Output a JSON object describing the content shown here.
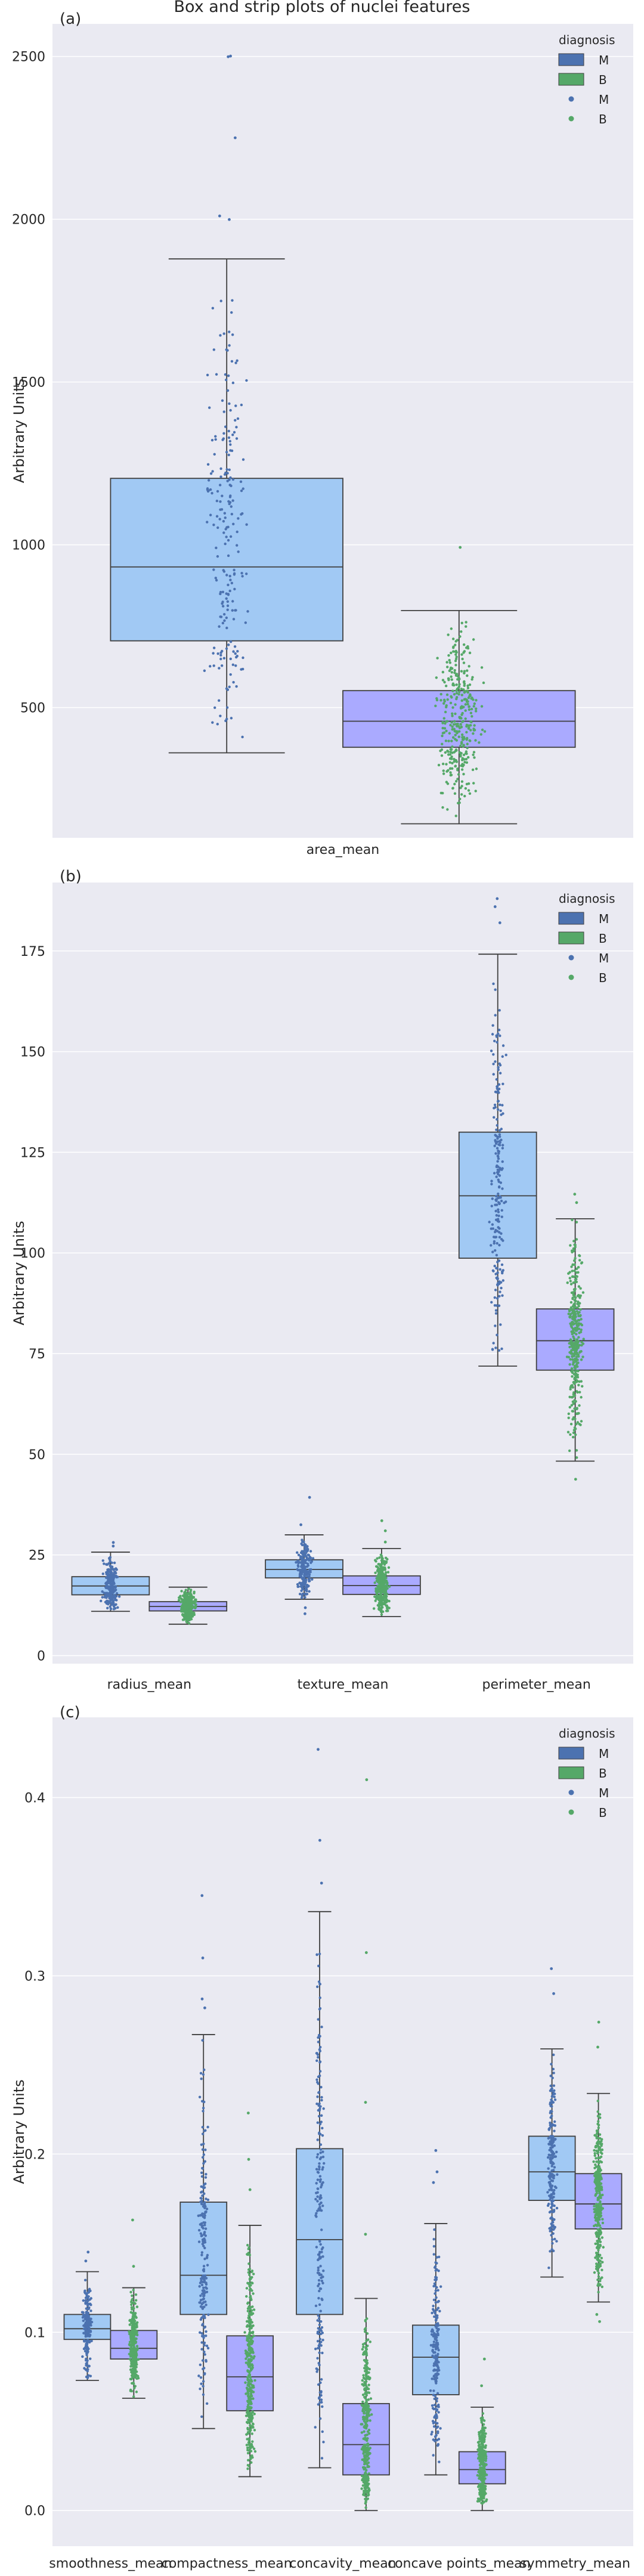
{
  "figure_title": "Box and strip plots of nuclei features",
  "colors": {
    "panel_bg": "#eaeaf2",
    "grid": "#ffffff",
    "box_M": "#a1c9f4",
    "box_B": "#aaaaff",
    "legend_M": "#4c72b0",
    "legend_B": "#55a868",
    "point_M": "#4c72b0",
    "point_B": "#55a868",
    "box_edge": "#3f3f3f"
  },
  "legend": {
    "title": "diagnosis",
    "entries": [
      "M",
      "B",
      "M",
      "B"
    ]
  },
  "chart_data": [
    {
      "type": "box",
      "panel_label": "(a)",
      "ylabel": "Arbitrary Units",
      "categories": [
        "area_mean"
      ],
      "ylim": [
        100,
        2600
      ],
      "yticks": [
        500,
        1000,
        1500,
        2000,
        2500
      ],
      "grid": true,
      "legend_placement": "top-right",
      "series": [
        {
          "name": "M",
          "stats": [
            {
              "whislo": 361,
              "q1": 705,
              "med": 932,
              "q3": 1204,
              "whishi": 1878
            }
          ],
          "outliers": [
            [
              1999,
              2010,
              2250,
              2499,
              2501
            ]
          ]
        },
        {
          "name": "B",
          "stats": [
            {
              "whislo": 143,
              "q1": 378,
              "med": 458,
              "q3": 552,
              "whishi": 798
            }
          ],
          "outliers": [
            [
              992
            ]
          ]
        }
      ]
    },
    {
      "type": "box",
      "panel_label": "(b)",
      "ylabel": "Arbitrary Units",
      "categories": [
        "radius_mean",
        "texture_mean",
        "perimeter_mean"
      ],
      "ylim": [
        -2,
        192
      ],
      "yticks": [
        0,
        25,
        50,
        75,
        100,
        125,
        150,
        175
      ],
      "grid": true,
      "legend_placement": "top-right",
      "series": [
        {
          "name": "M",
          "stats": [
            {
              "whislo": 11,
              "q1": 15.1,
              "med": 17.3,
              "q3": 19.6,
              "whishi": 25.7
            },
            {
              "whislo": 14,
              "q1": 19.3,
              "med": 21.4,
              "q3": 23.8,
              "whishi": 30.0
            },
            {
              "whislo": 71.9,
              "q1": 98.7,
              "med": 114.2,
              "q3": 130.0,
              "whishi": 174.2
            }
          ],
          "outliers": [
            [
              27.2,
              28.1
            ],
            [
              10.4,
              11.9,
              32.5,
              39.3
            ],
            [
              182,
              186,
              188
            ]
          ]
        },
        {
          "name": "B",
          "stats": [
            {
              "whislo": 7.8,
              "q1": 11.1,
              "med": 12.2,
              "q3": 13.4,
              "whishi": 17.0
            },
            {
              "whislo": 9.7,
              "q1": 15.2,
              "med": 17.4,
              "q3": 19.8,
              "whishi": 26.6
            },
            {
              "whislo": 48.3,
              "q1": 70.9,
              "med": 78.2,
              "q3": 86.1,
              "whishi": 108.5
            }
          ],
          "outliers": [
            [],
            [
              28.2,
              31.0,
              33.5
            ],
            [
              43.8,
              112.5,
              114.6
            ]
          ]
        }
      ]
    },
    {
      "type": "box",
      "panel_label": "(c)",
      "ylabel": "Arbitrary Units",
      "categories": [
        "smoothness_mean",
        "compactness_mean",
        "concavity_mean",
        "concave points_mean",
        "symmetry_mean"
      ],
      "ylim": [
        -0.02,
        0.445
      ],
      "yticks": [
        0.0,
        0.1,
        0.2,
        0.3,
        0.4
      ],
      "grid": true,
      "legend_placement": "top-right",
      "series": [
        {
          "name": "M",
          "stats": [
            {
              "whislo": 0.073,
              "q1": 0.096,
              "med": 0.102,
              "q3": 0.11,
              "whishi": 0.134
            },
            {
              "whislo": 0.046,
              "q1": 0.11,
              "med": 0.132,
              "q3": 0.173,
              "whishi": 0.267
            },
            {
              "whislo": 0.024,
              "q1": 0.11,
              "med": 0.152,
              "q3": 0.203,
              "whishi": 0.336
            },
            {
              "whislo": 0.02,
              "q1": 0.065,
              "med": 0.086,
              "q3": 0.104,
              "whishi": 0.161
            },
            {
              "whislo": 0.131,
              "q1": 0.174,
              "med": 0.19,
              "q3": 0.21,
              "whishi": 0.259
            }
          ],
          "outliers": [
            [
              0.14,
              0.145
            ],
            [
              0.282,
              0.287,
              0.31,
              0.345
            ],
            [
              0.352,
              0.376,
              0.427
            ],
            [
              0.184,
              0.19,
              0.202
            ],
            [
              0.29,
              0.304
            ]
          ]
        },
        {
          "name": "B",
          "stats": [
            {
              "whislo": 0.063,
              "q1": 0.085,
              "med": 0.091,
              "q3": 0.101,
              "whishi": 0.125
            },
            {
              "whislo": 0.019,
              "q1": 0.056,
              "med": 0.075,
              "q3": 0.098,
              "whishi": 0.16
            },
            {
              "whislo": 0.0,
              "q1": 0.02,
              "med": 0.037,
              "q3": 0.06,
              "whishi": 0.119
            },
            {
              "whislo": 0.0,
              "q1": 0.015,
              "med": 0.023,
              "q3": 0.033,
              "whishi": 0.058
            },
            {
              "whislo": 0.117,
              "q1": 0.158,
              "med": 0.172,
              "q3": 0.189,
              "whishi": 0.234
            }
          ],
          "outliers": [
            [
              0.137,
              0.163
            ],
            [
              0.18,
              0.197,
              0.223
            ],
            [
              0.155,
              0.229,
              0.313,
              0.41
            ],
            [
              0.07,
              0.085
            ],
            [
              0.106,
              0.11,
              0.26,
              0.274
            ]
          ]
        }
      ]
    }
  ]
}
